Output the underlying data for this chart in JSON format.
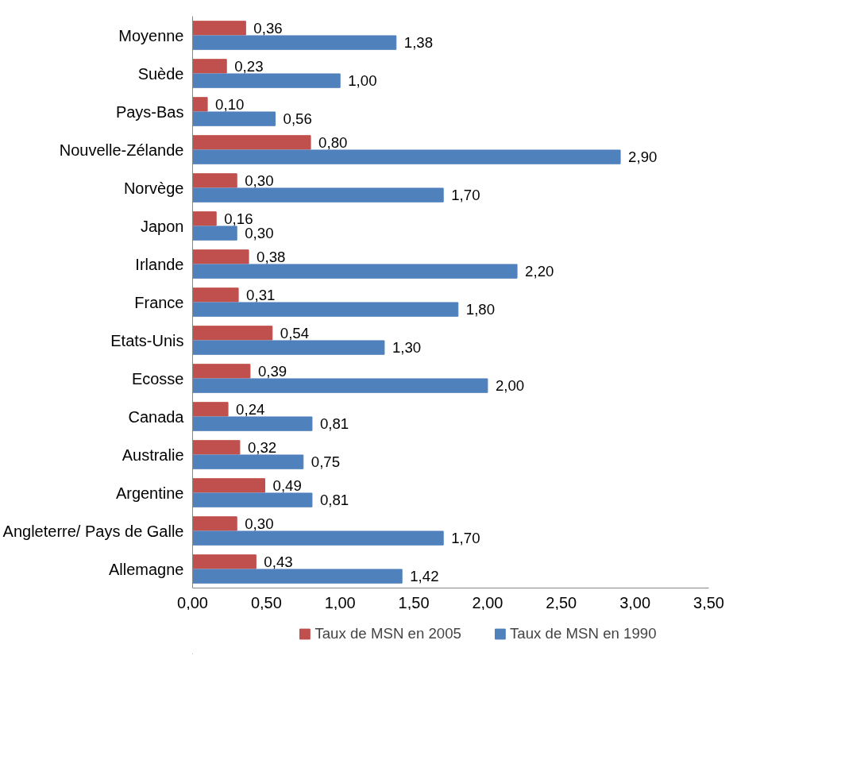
{
  "chart_data": {
    "type": "bar",
    "orientation": "horizontal",
    "categories": [
      "Moyenne",
      "Suède",
      "Pays-Bas",
      "Nouvelle-Zélande",
      "Norvège",
      "Japon",
      "Irlande",
      "France",
      "Etats-Unis",
      "Ecosse",
      "Canada",
      "Australie",
      "Argentine",
      "Angleterre/ Pays de Galle",
      "Allemagne"
    ],
    "series": [
      {
        "name": "Taux de MSN en 2005",
        "color": "#c0504d",
        "values": [
          0.36,
          0.23,
          0.1,
          0.8,
          0.3,
          0.16,
          0.38,
          0.31,
          0.54,
          0.39,
          0.24,
          0.32,
          0.49,
          0.3,
          0.43
        ],
        "value_labels": [
          "0,36",
          "0,23",
          "0,10",
          "0,80",
          "0,30",
          "0,16",
          "0,38",
          "0,31",
          "0,54",
          "0,39",
          "0,24",
          "0,32",
          "0,49",
          "0,30",
          "0,43"
        ]
      },
      {
        "name": "Taux de MSN en 1990",
        "color": "#4f81bd",
        "values": [
          1.38,
          1.0,
          0.56,
          2.9,
          1.7,
          0.3,
          2.2,
          1.8,
          1.3,
          2.0,
          0.81,
          0.75,
          0.81,
          1.7,
          1.42
        ],
        "value_labels": [
          "1,38",
          "1,00",
          "0,56",
          "2,90",
          "1,70",
          "0,30",
          "2,20",
          "1,80",
          "1,30",
          "2,00",
          "0,81",
          "0,75",
          "0,81",
          "1,70",
          "1,42"
        ]
      }
    ],
    "xlim": [
      0,
      3.5
    ],
    "xticks": [
      {
        "value": 0,
        "label": "0,00"
      },
      {
        "value": 0.5,
        "label": "0,50"
      },
      {
        "value": 1,
        "label": "1,00"
      },
      {
        "value": 1.5,
        "label": "1,50"
      },
      {
        "value": 2,
        "label": "2,00"
      },
      {
        "value": 2.5,
        "label": "2,50"
      },
      {
        "value": 3,
        "label": "3,00"
      },
      {
        "value": 3.5,
        "label": "3,50"
      }
    ],
    "grid": false,
    "legend": "bottom"
  }
}
